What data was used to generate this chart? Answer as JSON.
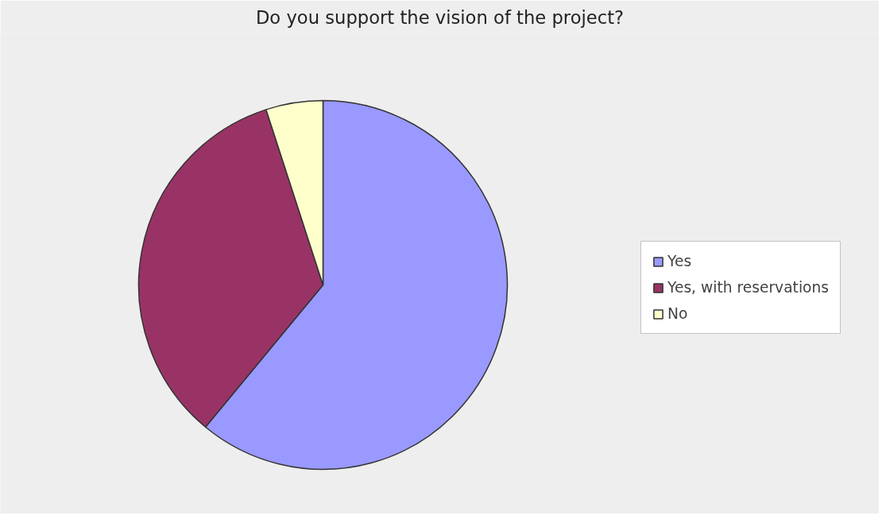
{
  "chart_data": {
    "type": "pie",
    "title": "Do you support the vision of the project?",
    "categories": [
      "Yes",
      "Yes, with reservations",
      "No"
    ],
    "values": [
      61,
      34,
      5
    ],
    "colors": [
      "#9999ff",
      "#993366",
      "#ffffcc"
    ],
    "legend": "right"
  }
}
